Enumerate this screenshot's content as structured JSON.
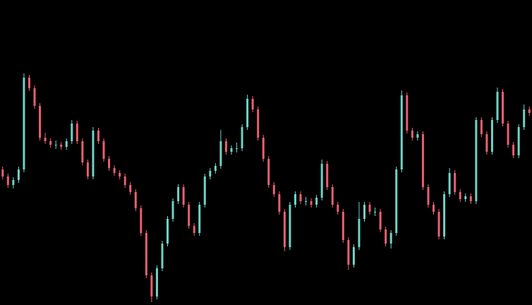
{
  "chart_data": {
    "type": "candlestick",
    "up_color": "#6fd3c6",
    "down_color": "#e8606e",
    "background": "#000000",
    "ylim": [
      0,
      432
    ],
    "open": [
      192,
      182,
      170,
      177,
      192,
      322,
      307,
      282,
      237,
      232,
      227,
      227,
      224,
      232,
      257,
      232,
      202,
      182,
      247,
      232,
      207,
      194,
      187,
      182,
      170,
      160,
      137,
      102,
      42,
      12,
      52,
      87,
      122,
      147,
      167,
      142,
      112,
      102,
      142,
      182,
      190,
      197,
      232,
      217,
      222,
      222,
      252,
      292,
      277,
      237,
      207,
      170,
      157,
      132,
      82,
      142,
      157,
      147,
      147,
      142,
      152,
      200,
      167,
      142,
      132,
      92,
      57,
      82,
      122,
      142,
      132,
      132,
      107,
      87,
      102,
      192,
      297,
      247,
      237,
      242,
      167,
      142,
      132,
      97,
      157,
      187,
      160,
      150,
      154,
      147,
      262,
      242,
      217,
      262,
      302,
      257,
      227,
      212,
      252,
      277
    ],
    "high": [
      196,
      186,
      181,
      196,
      328,
      326,
      311,
      286,
      244,
      236,
      233,
      231,
      236,
      262,
      261,
      236,
      206,
      252,
      251,
      236,
      211,
      198,
      191,
      186,
      174,
      164,
      141,
      106,
      46,
      56,
      91,
      126,
      151,
      171,
      171,
      146,
      116,
      146,
      186,
      194,
      201,
      248,
      236,
      226,
      230,
      256,
      298,
      296,
      281,
      241,
      211,
      174,
      161,
      136,
      146,
      161,
      161,
      153,
      151,
      156,
      206,
      204,
      171,
      146,
      136,
      96,
      86,
      146,
      146,
      146,
      138,
      136,
      111,
      106,
      196,
      304,
      301,
      251,
      246,
      246,
      171,
      146,
      136,
      161,
      194,
      191,
      164,
      158,
      158,
      266,
      266,
      246,
      266,
      308,
      306,
      261,
      231,
      256,
      284,
      281
    ],
    "low": [
      178,
      166,
      165,
      173,
      188,
      303,
      278,
      233,
      228,
      223,
      221,
      220,
      220,
      228,
      228,
      198,
      178,
      178,
      228,
      203,
      190,
      183,
      178,
      166,
      156,
      133,
      98,
      38,
      4,
      8,
      48,
      83,
      118,
      143,
      138,
      108,
      98,
      98,
      138,
      178,
      186,
      193,
      213,
      213,
      216,
      218,
      248,
      273,
      233,
      203,
      166,
      153,
      128,
      76,
      78,
      138,
      143,
      141,
      138,
      138,
      148,
      163,
      138,
      128,
      88,
      50,
      53,
      78,
      118,
      128,
      126,
      103,
      83,
      80,
      98,
      188,
      243,
      233,
      233,
      163,
      138,
      128,
      93,
      93,
      153,
      156,
      146,
      146,
      143,
      143,
      238,
      213,
      213,
      258,
      253,
      223,
      208,
      208,
      248,
      268
    ],
    "close": [
      182,
      170,
      177,
      192,
      322,
      307,
      282,
      237,
      232,
      227,
      227,
      224,
      232,
      257,
      232,
      202,
      182,
      247,
      232,
      207,
      194,
      187,
      182,
      170,
      160,
      137,
      102,
      42,
      12,
      52,
      87,
      122,
      147,
      167,
      142,
      112,
      102,
      142,
      182,
      190,
      197,
      232,
      217,
      222,
      222,
      252,
      292,
      277,
      237,
      207,
      170,
      157,
      132,
      82,
      142,
      157,
      147,
      147,
      142,
      152,
      200,
      167,
      142,
      132,
      92,
      57,
      82,
      122,
      142,
      132,
      132,
      107,
      87,
      102,
      192,
      297,
      247,
      237,
      242,
      167,
      142,
      132,
      97,
      157,
      187,
      160,
      150,
      154,
      147,
      262,
      242,
      217,
      262,
      302,
      257,
      227,
      212,
      252,
      277,
      272
    ]
  }
}
